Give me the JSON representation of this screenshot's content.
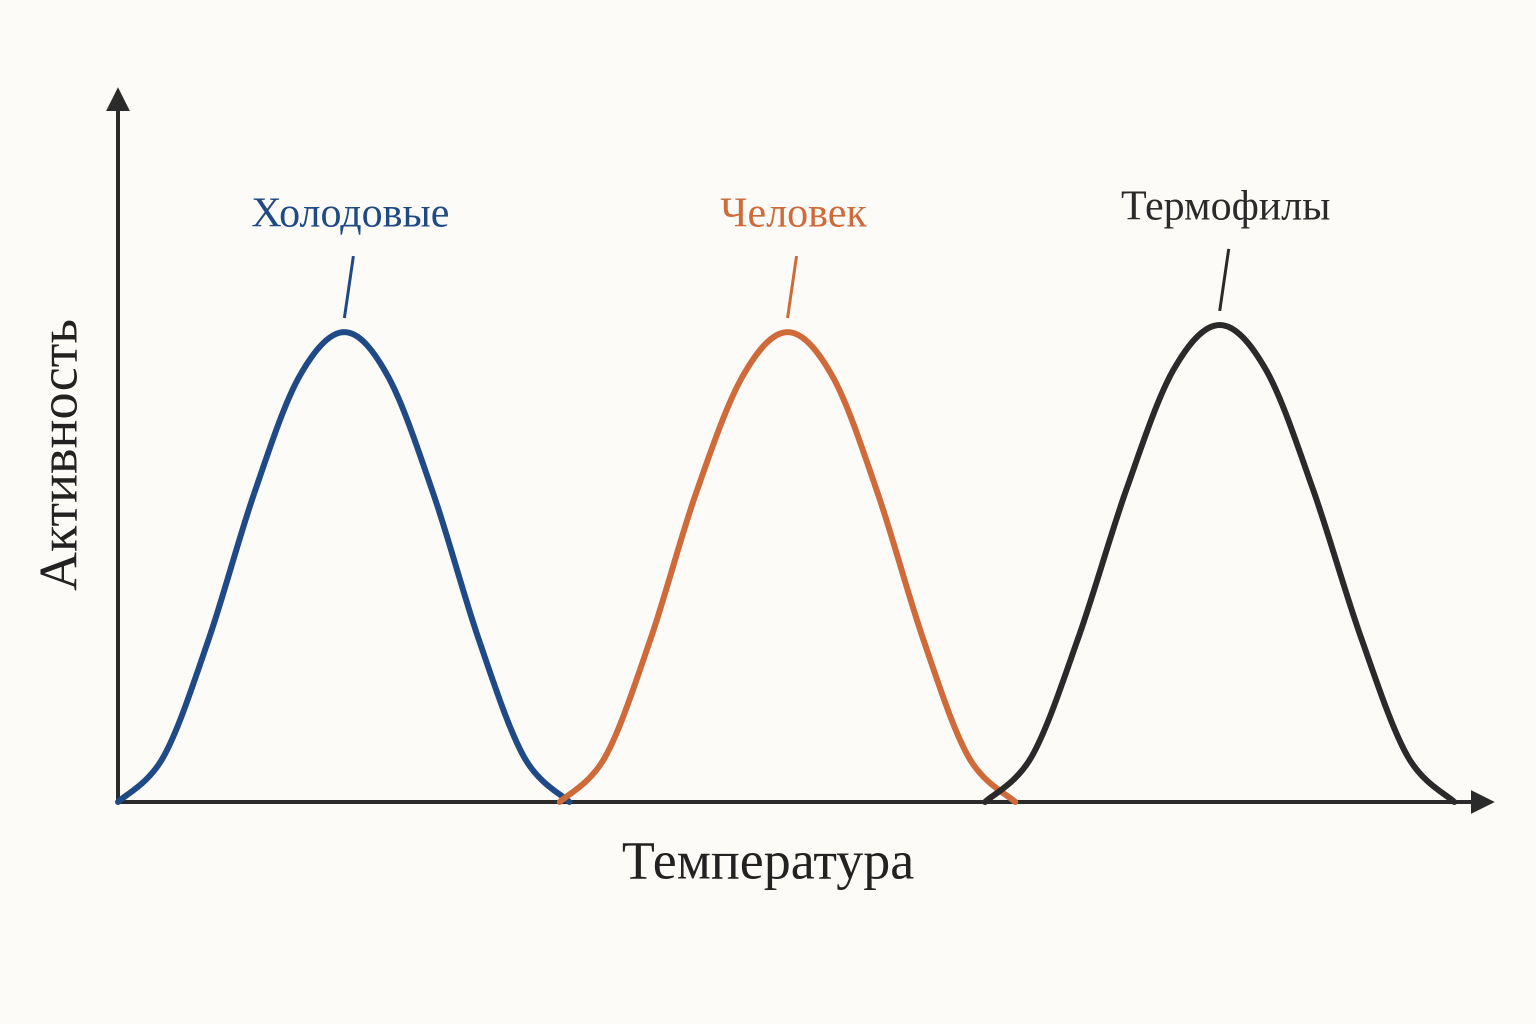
{
  "chart_data": {
    "type": "line",
    "x_label": "Температура",
    "y_label": "Активность",
    "xlim": [
      0,
      100
    ],
    "ylim": [
      0,
      100
    ],
    "series": [
      {
        "name": "Холодовые",
        "color": "#1f4a86",
        "x": [
          0,
          3.3,
          6.6,
          9.9,
          13.2,
          16.5,
          19.7,
          23.0,
          26.3,
          29.6,
          32.9
        ],
        "values": [
          0,
          6.3,
          22.8,
          43.2,
          59.7,
          66,
          59.7,
          43.2,
          22.8,
          6.3,
          0
        ]
      },
      {
        "name": "Человек",
        "color": "#cf6a3a",
        "x": [
          32.2,
          35.5,
          38.8,
          42.1,
          45.5,
          48.8,
          52.1,
          55.4,
          58.7,
          62.0,
          65.4
        ],
        "values": [
          0,
          6.3,
          22.8,
          43.2,
          59.7,
          66,
          59.7,
          43.2,
          22.8,
          6.3,
          0
        ]
      },
      {
        "name": "Термофилы",
        "color": "#2a2a2a",
        "x": [
          63.2,
          66.6,
          70.0,
          73.5,
          76.9,
          80.3,
          83.7,
          87.1,
          90.6,
          94.0,
          97.4
        ],
        "values": [
          0,
          6.4,
          23.1,
          43.9,
          60.6,
          67,
          60.6,
          43.9,
          23.1,
          6.4,
          0
        ]
      }
    ]
  }
}
